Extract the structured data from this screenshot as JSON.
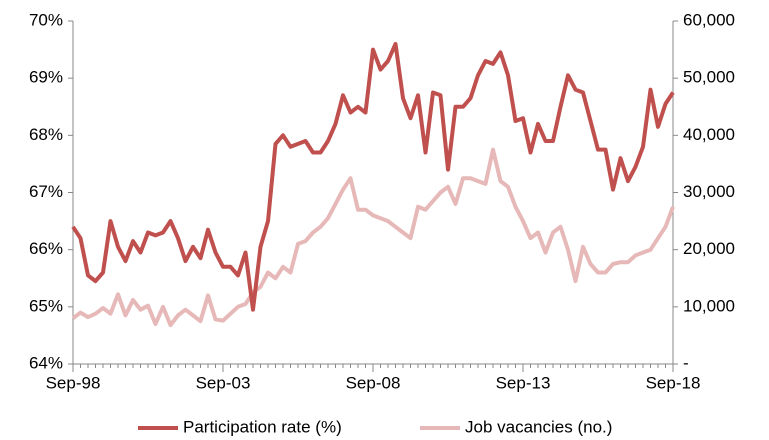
{
  "chart_data": {
    "type": "line",
    "categories": [
      "Sep-98",
      null,
      null,
      null,
      null,
      null,
      null,
      null,
      null,
      null,
      null,
      null,
      null,
      null,
      null,
      null,
      null,
      null,
      null,
      null,
      "Sep-03",
      null,
      null,
      null,
      null,
      null,
      null,
      null,
      null,
      null,
      null,
      null,
      null,
      null,
      null,
      null,
      null,
      null,
      null,
      null,
      "Sep-08",
      null,
      null,
      null,
      null,
      null,
      null,
      null,
      null,
      null,
      null,
      null,
      null,
      null,
      null,
      null,
      null,
      null,
      null,
      null,
      "Sep-13",
      null,
      null,
      null,
      null,
      null,
      null,
      null,
      null,
      null,
      null,
      null,
      null,
      null,
      null,
      null,
      null,
      null,
      null,
      null,
      "Sep-18"
    ],
    "series": [
      {
        "name": "Participation rate (%)",
        "color": "#c0504d",
        "values": [
          66.4,
          66.2,
          65.55,
          65.45,
          65.6,
          66.5,
          66.05,
          65.8,
          66.15,
          65.95,
          66.3,
          66.25,
          66.3,
          66.5,
          66.2,
          65.8,
          66.05,
          65.85,
          66.35,
          65.95,
          65.7,
          65.7,
          65.55,
          65.95,
          64.95,
          66.05,
          66.5,
          67.85,
          68.0,
          67.8,
          67.85,
          67.9,
          67.7,
          67.7,
          67.9,
          68.2,
          68.7,
          68.4,
          68.5,
          68.4,
          69.5,
          69.15,
          69.3,
          69.6,
          68.65,
          68.3,
          68.7,
          67.7,
          68.75,
          68.7,
          67.4,
          68.5,
          68.5,
          68.65,
          69.05,
          69.3,
          69.25,
          69.45,
          69.05,
          68.25,
          68.3,
          67.7,
          68.2,
          67.9,
          67.9,
          68.5,
          69.05,
          68.8,
          68.75,
          68.25,
          67.75,
          67.75,
          67.05,
          67.6,
          67.2,
          67.45,
          67.8,
          68.8,
          68.15,
          68.55,
          68.75
        ]
      },
      {
        "name": "Job vacancies (no.)",
        "color": "#e6b9b8",
        "axis": "y2",
        "values": [
          8000,
          9000,
          8200,
          8800,
          9800,
          8800,
          12200,
          8500,
          11200,
          9500,
          10200,
          7000,
          10000,
          6800,
          8500,
          9500,
          8500,
          7500,
          12000,
          7800,
          7600,
          8800,
          10000,
          10500,
          12500,
          13500,
          16000,
          15000,
          17000,
          16000,
          21000,
          21500,
          23000,
          24000,
          25500,
          28000,
          30500,
          32500,
          27000,
          27000,
          26000,
          25500,
          25000,
          24000,
          23000,
          22000,
          27500,
          27000,
          28500,
          30000,
          31000,
          28000,
          32500,
          32500,
          32000,
          31500,
          37500,
          32000,
          31000,
          27500,
          25000,
          22000,
          23000,
          19500,
          23000,
          24000,
          20000,
          14500,
          20500,
          17500,
          16000,
          16000,
          17500,
          17800,
          17800,
          19000,
          19500,
          20000,
          22000,
          24000,
          27500
        ]
      }
    ],
    "ylim": [
      64,
      70
    ],
    "yticks": [
      {
        "value": 64,
        "label": "64%"
      },
      {
        "value": 65,
        "label": "65%"
      },
      {
        "value": 66,
        "label": "66%"
      },
      {
        "value": 67,
        "label": "67%"
      },
      {
        "value": 68,
        "label": "68%"
      },
      {
        "value": 69,
        "label": "69%"
      },
      {
        "value": 70,
        "label": "70%"
      }
    ],
    "y2lim": [
      0,
      60000
    ],
    "y2ticks": [
      {
        "value": 0,
        "label": "-"
      },
      {
        "value": 10000,
        "label": "10,000"
      },
      {
        "value": 20000,
        "label": "20,000"
      },
      {
        "value": 30000,
        "label": "30,000"
      },
      {
        "value": 40000,
        "label": "40,000"
      },
      {
        "value": 50000,
        "label": "50,000"
      },
      {
        "value": 60000,
        "label": "60,000"
      }
    ],
    "legend": "bottom"
  }
}
